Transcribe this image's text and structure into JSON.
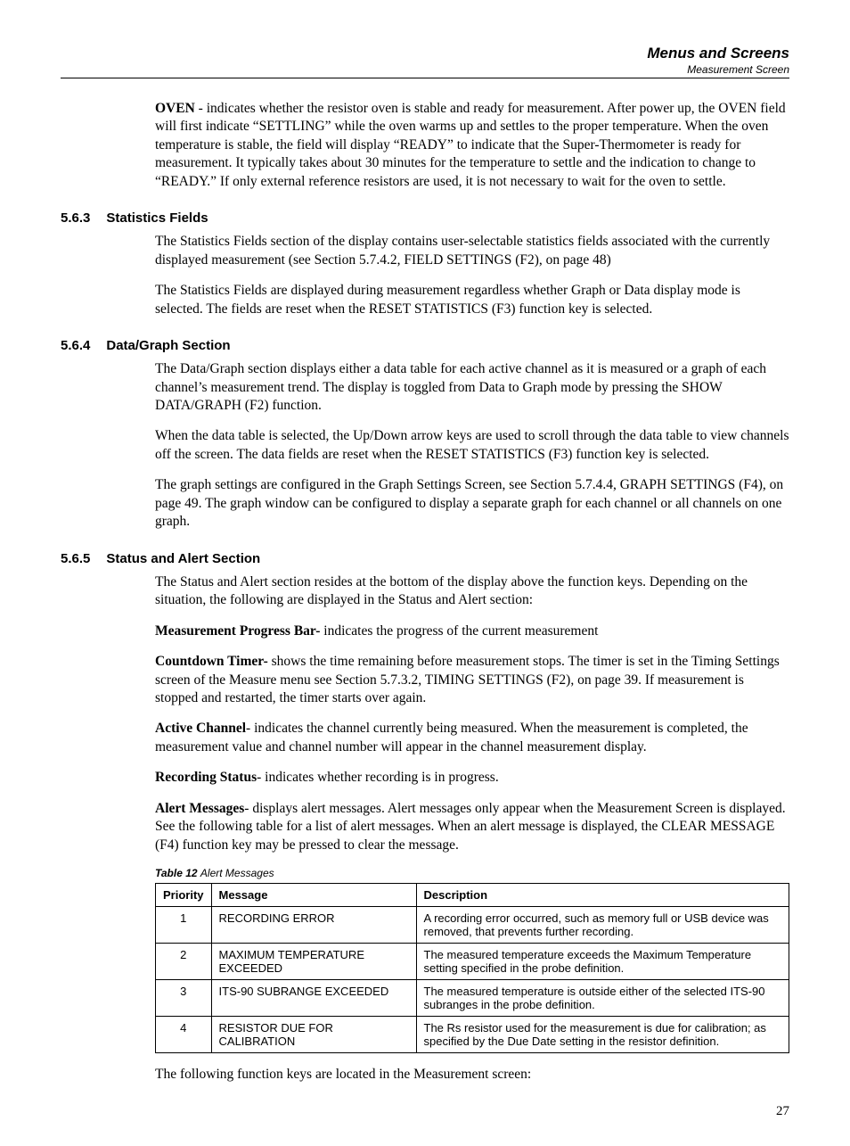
{
  "header": {
    "title": "Menus and Screens",
    "subtitle": "Measurement Screen"
  },
  "intro_para": {
    "lead": "OVEN",
    "rest": " - indicates whether the resistor oven is stable and ready for measurement. After power up, the OVEN field will first indicate “SETTLING” while the oven warms up and settles to the proper temperature. When the oven temperature is stable, the field will display “READY” to indicate that the Super-Thermometer is ready for measurement. It typically takes about 30 minutes for the temperature to settle and the indication to change to “READY.” If only external reference resistors are used, it is not necessary to wait for the oven to settle."
  },
  "sections": {
    "s563": {
      "num": "5.6.3",
      "title": "Statistics Fields",
      "p1": "The Statistics Fields section of the display contains user-selectable statistics fields associated with the currently displayed measurement (see Section 5.7.4.2, FIELD SETTINGS (F2), on page 48)",
      "p2": "The Statistics Fields are displayed during measurement regardless whether Graph or Data display mode is selected. The fields are reset when the RESET STATISTICS (F3) function key is selected."
    },
    "s564": {
      "num": "5.6.4",
      "title": "Data/Graph Section",
      "p1": "The Data/Graph section displays either a data table for each active channel as it is measured or a graph of each channel’s measurement trend. The display is toggled from Data to Graph mode by pressing the SHOW DATA/GRAPH (F2) function.",
      "p2": "When the data table is selected, the Up/Down arrow keys are used to scroll through the data table to view channels off the screen. The data fields are reset when the RESET STATISTICS (F3) function key is selected.",
      "p3": "The graph settings are configured in the Graph Settings Screen, see Section 5.7.4.4, GRAPH SETTINGS (F4), on page 49. The graph window can be configured to display a separate graph for each channel or all channels on one graph."
    },
    "s565": {
      "num": "5.6.5",
      "title": "Status and Alert Section",
      "p1": "The Status and Alert section resides at the bottom of the display above the function keys. Depending on the situation, the following are displayed in the Status and Alert section:",
      "mp_lead": "Measurement Progress Bar-",
      "mp_rest": " indicates the progress of the current measurement",
      "ct_lead": "Countdown Timer-",
      "ct_rest": " shows the time remaining before measurement stops. The timer is set in the Timing Settings screen of the Measure menu see Section 5.7.3.2, TIMING SETTINGS (F2), on page 39. If measurement is stopped and restarted, the timer starts over again.",
      "ac_lead": "Active Channel",
      "ac_rest": "- indicates the channel currently being measured. When the measurement is completed, the measurement value and channel number will appear in the channel measurement display.",
      "rs_lead": "Recording Status",
      "rs_rest": "- indicates whether recording is in progress.",
      "am_lead": "Alert Messages",
      "am_rest": "- displays alert messages. Alert messages only appear when the Measurement Screen is displayed. See the following table for a list of alert messages. When an alert message is displayed, the CLEAR MESSAGE (F4) function key may be pressed to clear the message."
    }
  },
  "table": {
    "caption_bold": "Table 12 ",
    "caption_rest": "Alert Messages",
    "columns": [
      "Priority",
      "Message",
      "Description"
    ],
    "col_widths": [
      "55px",
      "230px",
      "auto"
    ],
    "rows": [
      [
        "1",
        "RECORDING ERROR",
        "A recording error occurred, such as memory full or USB device was removed, that prevents further recording."
      ],
      [
        "2",
        "MAXIMUM TEMPERATURE EXCEEDED",
        "The measured temperature exceeds the Maximum Temperature setting specified in the probe definition."
      ],
      [
        "3",
        "ITS-90 SUBRANGE EXCEEDED",
        "The measured temperature is outside either of the selected ITS-90 subranges in the probe definition."
      ],
      [
        "4",
        "RESISTOR DUE FOR CALIBRATION",
        "The Rs resistor used for the measurement is due for calibration; as specified by the Due Date setting in the resistor definition."
      ]
    ]
  },
  "closing_para": "The following function keys are located in the Measurement screen:",
  "page_number": "27"
}
